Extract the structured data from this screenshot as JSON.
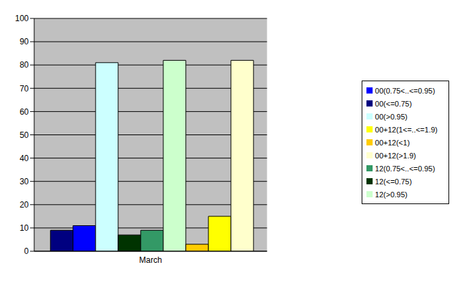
{
  "chart_data": {
    "type": "bar",
    "categories": [
      "March"
    ],
    "series": [
      {
        "name": "00(<=0.75)",
        "color": "#000080",
        "values": [
          9
        ]
      },
      {
        "name": "00(0.75<..<=0.95)",
        "color": "#0000ff",
        "values": [
          11
        ]
      },
      {
        "name": "00(>0.95)",
        "color": "#ccffff",
        "values": [
          81
        ]
      },
      {
        "name": "12(<=0.75)",
        "color": "#003300",
        "values": [
          7
        ]
      },
      {
        "name": "12(0.75<..<=0.95)",
        "color": "#339966",
        "values": [
          9
        ]
      },
      {
        "name": "12(>0.95)",
        "color": "#ccffcc",
        "values": [
          82
        ]
      },
      {
        "name": "00+12(<1)",
        "color": "#ffcc00",
        "values": [
          3
        ]
      },
      {
        "name": "00+12(1<=..<=1.9)",
        "color": "#ffff00",
        "values": [
          15
        ]
      },
      {
        "name": "00+12(>1.9)",
        "color": "#ffffcc",
        "values": [
          82
        ]
      }
    ],
    "ylim": [
      0,
      100
    ],
    "yticks": [
      0,
      10,
      20,
      30,
      40,
      50,
      60,
      70,
      80,
      90,
      100
    ],
    "grid": true,
    "legend": "right"
  }
}
